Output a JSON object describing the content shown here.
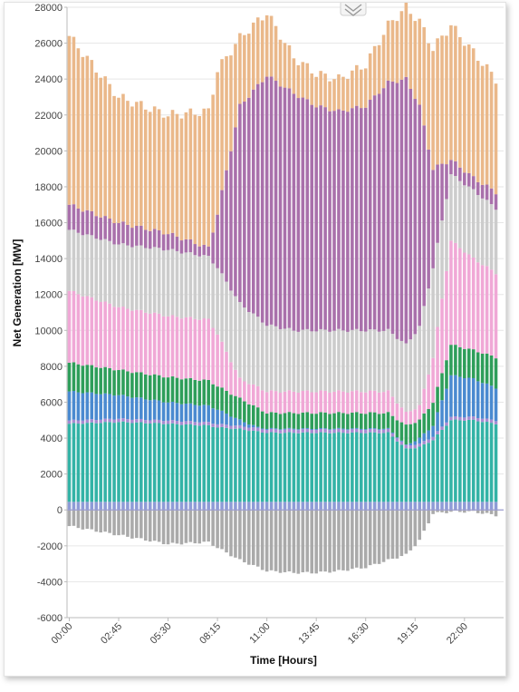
{
  "chart_data": {
    "type": "bar",
    "stacked": true,
    "xlabel": "Time [Hours]",
    "ylabel": "Net Generation [MW]",
    "ylim": [
      -6000,
      28000
    ],
    "yticks": [
      28000,
      26000,
      24000,
      22000,
      20000,
      18000,
      16000,
      14000,
      12000,
      10000,
      8000,
      6000,
      4000,
      2000,
      0,
      -2000,
      -4000,
      -6000
    ],
    "xticks": [
      "00:00",
      "02:45",
      "05:30",
      "08:15",
      "11:00",
      "13:45",
      "16:30",
      "19:15",
      "22:00"
    ],
    "interval_minutes": 15,
    "grid": true,
    "colors": {
      "bottom_band": "#8e9bd6",
      "teal": "#33b3a6",
      "thin_purple": "#a78bd1",
      "blue": "#4a8ad0",
      "green": "#2e9e5a",
      "pink": "#f0a8d6",
      "gray": "#cccccc",
      "purple": "#a970ab",
      "orange": "#eab88a",
      "negative_gray": "#aaaaaa"
    },
    "key_points": [
      {
        "time": "00:00",
        "teal_top": 4800,
        "blue_top": 6600,
        "green_top": 8200,
        "pink_top": 12200,
        "gray_top": 15600,
        "purple_top": 17000,
        "total": 26400,
        "negative": -900
      },
      {
        "time": "02:45",
        "teal_top": 4900,
        "blue_top": 6400,
        "green_top": 7800,
        "pink_top": 11300,
        "gray_top": 14800,
        "purple_top": 16000,
        "total": 23000,
        "negative": -1400
      },
      {
        "time": "05:30",
        "teal_top": 4800,
        "blue_top": 6000,
        "green_top": 7400,
        "pink_top": 10800,
        "gray_top": 14500,
        "purple_top": 15400,
        "total": 22000,
        "negative": -1900
      },
      {
        "time": "07:45",
        "teal_top": 4700,
        "blue_top": 5800,
        "green_top": 7200,
        "pink_top": 10600,
        "gray_top": 14100,
        "purple_top": 14600,
        "total": 22200,
        "negative": -1800
      },
      {
        "time": "08:15",
        "teal_top": 4600,
        "blue_top": 5600,
        "green_top": 6900,
        "pink_top": 9800,
        "gray_top": 13500,
        "purple_top": 16500,
        "total": 24500,
        "negative": -2100
      },
      {
        "time": "09:30",
        "teal_top": 4500,
        "blue_top": 5000,
        "green_top": 6200,
        "pink_top": 7300,
        "gray_top": 11500,
        "purple_top": 22500,
        "total": 26300,
        "negative": -2800
      },
      {
        "time": "11:00",
        "teal_top": 4300,
        "blue_top": 4400,
        "green_top": 5400,
        "pink_top": 6600,
        "gray_top": 10300,
        "purple_top": 24200,
        "total": 27700,
        "negative": -3400
      },
      {
        "time": "12:30",
        "teal_top": 4300,
        "blue_top": 4400,
        "green_top": 5400,
        "pink_top": 6600,
        "gray_top": 10000,
        "purple_top": 23200,
        "total": 25200,
        "negative": -3500
      },
      {
        "time": "13:45",
        "teal_top": 4300,
        "blue_top": 4400,
        "green_top": 5400,
        "pink_top": 6600,
        "gray_top": 10000,
        "purple_top": 22500,
        "total": 24300,
        "negative": -3500
      },
      {
        "time": "15:00",
        "teal_top": 4300,
        "blue_top": 4400,
        "green_top": 5400,
        "pink_top": 6600,
        "gray_top": 10000,
        "purple_top": 22200,
        "total": 24000,
        "negative": -3400
      },
      {
        "time": "16:30",
        "teal_top": 4300,
        "blue_top": 4400,
        "green_top": 5400,
        "pink_top": 6600,
        "gray_top": 10000,
        "purple_top": 22500,
        "total": 24800,
        "negative": -3200
      },
      {
        "time": "17:45",
        "teal_top": 4300,
        "blue_top": 4400,
        "green_top": 5400,
        "pink_top": 6600,
        "gray_top": 10000,
        "purple_top": 23800,
        "total": 27000,
        "negative": -2800
      },
      {
        "time": "18:45",
        "teal_top": 3400,
        "blue_top": 3600,
        "green_top": 4700,
        "pink_top": 5400,
        "gray_top": 9200,
        "purple_top": 24000,
        "total": 28000,
        "negative": -2500
      },
      {
        "time": "19:30",
        "teal_top": 3500,
        "blue_top": 4000,
        "green_top": 5000,
        "pink_top": 5800,
        "gray_top": 10200,
        "purple_top": 22500,
        "total": 27200,
        "negative": -1700
      },
      {
        "time": "20:15",
        "teal_top": 3900,
        "blue_top": 4700,
        "green_top": 6000,
        "pink_top": 8500,
        "gray_top": 13500,
        "purple_top": 19000,
        "total": 25700,
        "negative": -200
      },
      {
        "time": "21:15",
        "teal_top": 5000,
        "blue_top": 7500,
        "green_top": 9200,
        "pink_top": 15000,
        "gray_top": 18700,
        "purple_top": 19500,
        "total": 27000,
        "negative": -100
      },
      {
        "time": "22:30",
        "teal_top": 5000,
        "blue_top": 7300,
        "green_top": 8900,
        "pink_top": 14000,
        "gray_top": 17800,
        "purple_top": 18500,
        "total": 25500,
        "negative": -100
      },
      {
        "time": "23:45",
        "teal_top": 4800,
        "blue_top": 6800,
        "green_top": 8500,
        "pink_top": 13200,
        "gray_top": 16800,
        "purple_top": 17700,
        "total": 24000,
        "negative": -300
      }
    ]
  }
}
